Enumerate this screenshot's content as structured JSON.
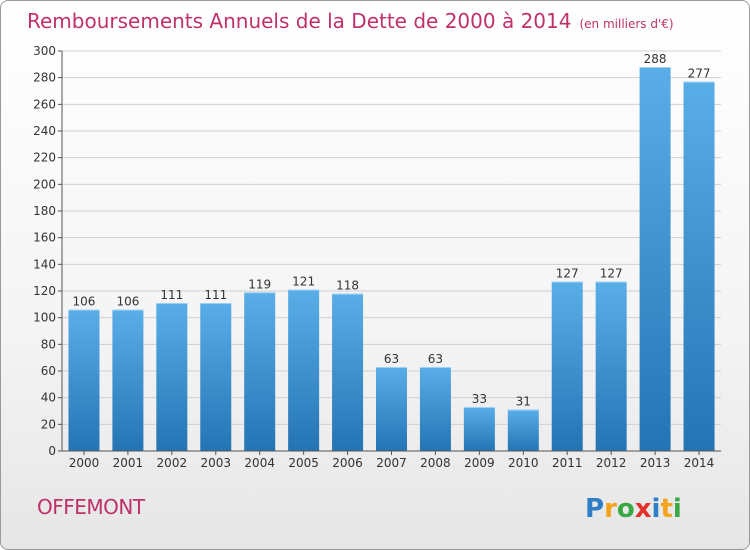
{
  "title": "Remboursements Annuels de la Dette de 2000 à 2014",
  "subtitle": "(en milliers d'€)",
  "town": "OFFEMONT",
  "logo_text": "Proxiti",
  "colors": {
    "title": "#c0306a",
    "bar_top": "#5aaee8",
    "bar_bottom": "#2474b4",
    "grid": "#d0d0d0"
  },
  "chart_data": {
    "type": "bar",
    "title": "Remboursements Annuels de la Dette de 2000 à 2014",
    "subtitle": "(en milliers d'€)",
    "xlabel": "",
    "ylabel": "",
    "categories": [
      "2000",
      "2001",
      "2002",
      "2003",
      "2004",
      "2005",
      "2006",
      "2007",
      "2008",
      "2009",
      "2010",
      "2011",
      "2012",
      "2013",
      "2014"
    ],
    "values": [
      106,
      106,
      111,
      111,
      119,
      121,
      118,
      63,
      63,
      33,
      31,
      127,
      127,
      288,
      277
    ],
    "ylim": [
      0,
      300
    ],
    "yticks": [
      0,
      20,
      40,
      60,
      80,
      100,
      120,
      140,
      160,
      180,
      200,
      220,
      240,
      260,
      280,
      300
    ],
    "grid": true,
    "data_labels": true
  }
}
